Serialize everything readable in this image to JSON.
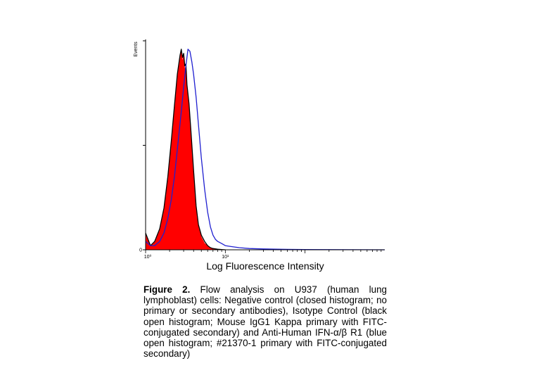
{
  "chart_data": {
    "type": "area",
    "ylabel": "Events",
    "xlabel": "Log Fluorescence Intensity",
    "x_scale": "log",
    "xlim": [
      1,
      1000
    ],
    "ylim": [
      0,
      1
    ],
    "xticks": [
      {
        "value": 1,
        "label": "10⁰"
      },
      {
        "value": 10,
        "label": "10¹"
      }
    ],
    "yticks": [
      {
        "value": 0,
        "label": "0"
      },
      {
        "value": 0.5,
        "label": ""
      },
      {
        "value": 1,
        "label": ""
      }
    ],
    "series": [
      {
        "color": "#ff0000",
        "filled": true,
        "x": [
          1.0,
          1.15,
          1.3,
          1.5,
          1.7,
          1.9,
          2.1,
          2.3,
          2.5,
          2.7,
          2.8,
          2.9,
          3.0,
          3.1,
          3.2,
          3.3,
          3.5,
          3.7,
          4.0,
          4.3,
          4.6,
          5.0,
          5.5,
          6.0,
          6.5,
          7.0,
          8.0,
          9.0,
          10.0
        ],
        "values": [
          0.07,
          0.02,
          0.04,
          0.09,
          0.19,
          0.33,
          0.5,
          0.67,
          0.82,
          0.92,
          0.95,
          0.9,
          0.93,
          0.86,
          0.88,
          0.77,
          0.68,
          0.55,
          0.36,
          0.2,
          0.11,
          0.06,
          0.03,
          0.02,
          0.01,
          0.005,
          0.002,
          0.001,
          0.0
        ]
      },
      {
        "color": "#000000",
        "filled": false,
        "x": [
          1.0,
          1.15,
          1.3,
          1.5,
          1.7,
          1.9,
          2.1,
          2.3,
          2.5,
          2.7,
          2.8,
          2.9,
          3.0,
          3.1,
          3.2,
          3.3,
          3.5,
          3.7,
          4.0,
          4.3,
          4.6,
          5.0,
          5.5,
          6.0,
          6.5,
          7.0,
          8.0,
          9.0,
          10.0
        ],
        "values": [
          0.08,
          0.02,
          0.04,
          0.1,
          0.2,
          0.35,
          0.52,
          0.69,
          0.84,
          0.93,
          0.96,
          0.92,
          0.94,
          0.88,
          0.89,
          0.79,
          0.7,
          0.57,
          0.38,
          0.21,
          0.12,
          0.07,
          0.04,
          0.02,
          0.01,
          0.006,
          0.003,
          0.001,
          0.0
        ]
      },
      {
        "color": "#1f1fd0",
        "filled": false,
        "x": [
          1.0,
          1.15,
          1.3,
          1.5,
          1.7,
          1.9,
          2.1,
          2.3,
          2.5,
          2.8,
          3.0,
          3.2,
          3.4,
          3.6,
          3.8,
          4.0,
          4.3,
          4.6,
          5.0,
          5.5,
          6.0,
          6.5,
          7.0,
          7.5,
          8.0,
          9.0,
          10.0,
          12.0,
          15.0,
          20.0,
          30.0,
          60.0,
          100.0,
          1000.0
        ],
        "values": [
          0.04,
          0.02,
          0.02,
          0.04,
          0.08,
          0.15,
          0.24,
          0.35,
          0.48,
          0.66,
          0.78,
          0.88,
          0.96,
          0.95,
          0.9,
          0.84,
          0.73,
          0.6,
          0.44,
          0.29,
          0.18,
          0.11,
          0.07,
          0.05,
          0.04,
          0.03,
          0.02,
          0.015,
          0.01,
          0.006,
          0.004,
          0.002,
          0.001,
          0.0
        ]
      }
    ]
  },
  "caption": {
    "bold": "Figure 2.",
    "text": " Flow analysis on U937 (human lung lymphoblast) cells: Negative control (closed histogram; no primary or secondary antibodies), Isotype Control (black open histogram; Mouse IgG1 Kappa primary with FITC-conjugated secondary) and Anti-Human IFN-α/β R1 (blue open histogram; #21370-1 primary with FITC-conjugated secondary)"
  }
}
